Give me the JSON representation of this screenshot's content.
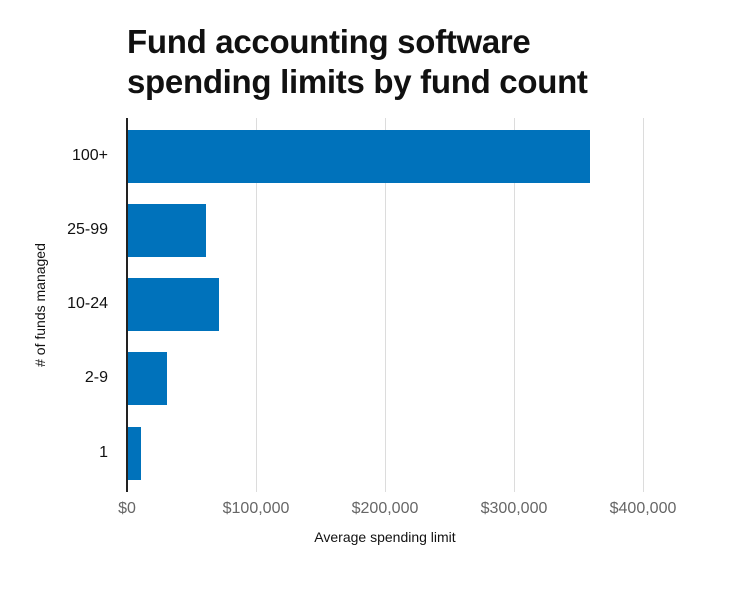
{
  "title_line1": "Fund accounting software",
  "title_line2": "spending limits by fund count",
  "chart_data": {
    "type": "bar",
    "orientation": "horizontal",
    "title": "Fund accounting software spending limits by fund count",
    "xlabel": "Average spending limit",
    "ylabel": "# of funds managed",
    "categories": [
      "100+",
      "25-99",
      "10-24",
      "2-9",
      "1"
    ],
    "values": [
      359000,
      61000,
      71000,
      31000,
      11000
    ],
    "xlim": [
      0,
      400000
    ],
    "x_ticks": [
      "$0",
      "$100,000",
      "$200,000",
      "$300,000",
      "$400,000"
    ],
    "grid": true,
    "bar_color": "#0072bb"
  }
}
